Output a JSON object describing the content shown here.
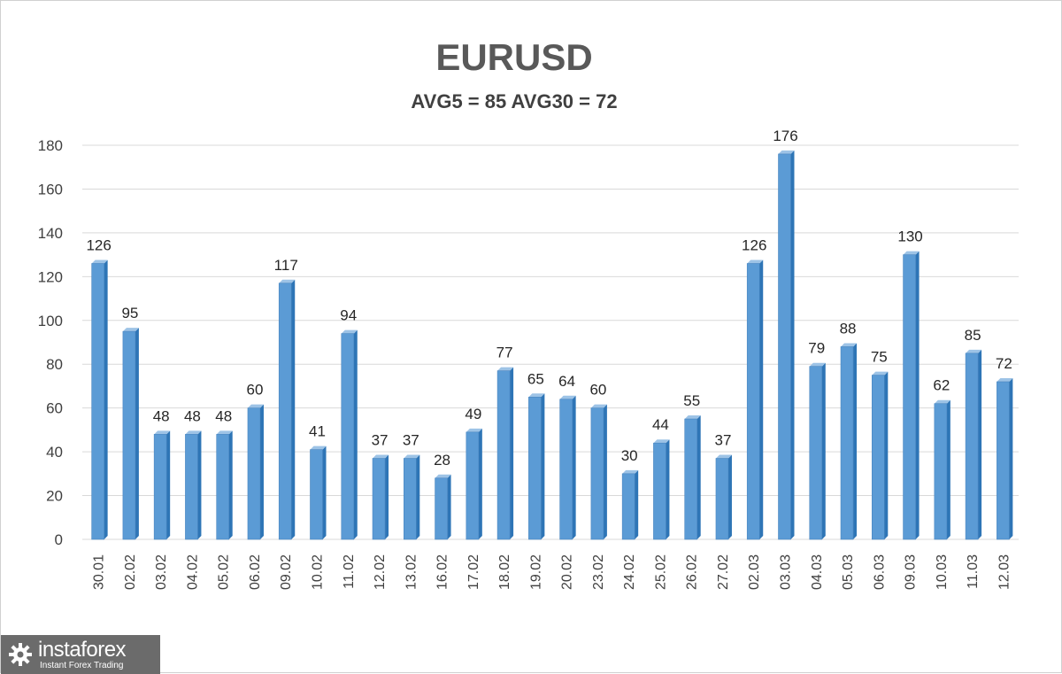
{
  "chart_data": {
    "type": "bar",
    "title": "EURUSD",
    "subtitle": "AVG5 = 85 AVG30 = 72",
    "categories": [
      "30.01",
      "02.02",
      "03.02",
      "04.02",
      "05.02",
      "06.02",
      "09.02",
      "10.02",
      "11.02",
      "12.02",
      "13.02",
      "16.02",
      "17.02",
      "18.02",
      "19.02",
      "20.02",
      "23.02",
      "24.02",
      "25.02",
      "26.02",
      "27.02",
      "02.03",
      "03.03",
      "04.03",
      "05.03",
      "06.03",
      "09.03",
      "10.03",
      "11.03",
      "12.03"
    ],
    "values": [
      126,
      95,
      48,
      48,
      48,
      60,
      117,
      41,
      94,
      37,
      37,
      28,
      49,
      77,
      65,
      64,
      60,
      30,
      44,
      55,
      37,
      126,
      176,
      79,
      88,
      75,
      130,
      62,
      85,
      72
    ],
    "ylim": [
      0,
      180
    ],
    "yticks": [
      0,
      20,
      40,
      60,
      80,
      100,
      120,
      140,
      160,
      180
    ],
    "xlabel": "",
    "ylabel": "",
    "grid": true,
    "legend": "none",
    "bar_color": "#5b9bd5",
    "bar_side_color": "#2e75b6",
    "bar_top_color": "#9dc3e6"
  },
  "logo": {
    "name": "instaforex",
    "tagline": "Instant Forex Trading",
    "icon": "gear-icon"
  }
}
